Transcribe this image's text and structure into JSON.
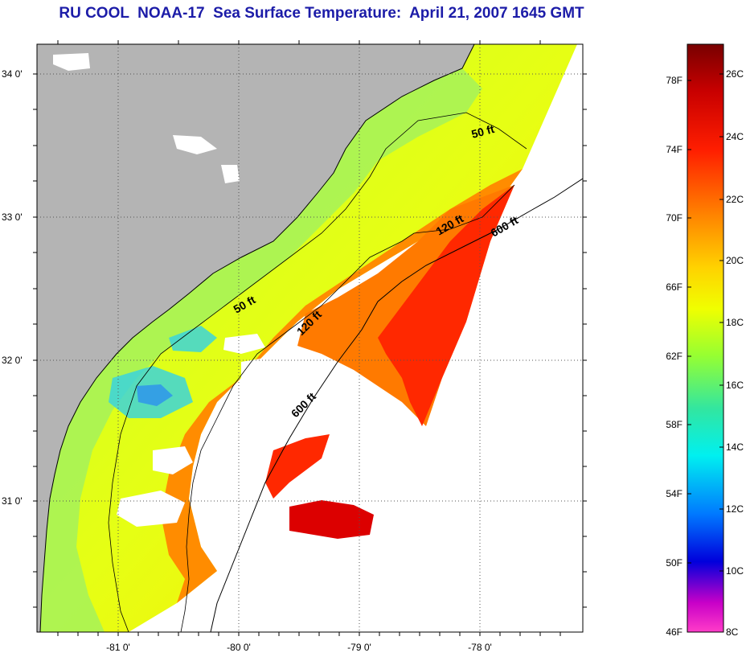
{
  "title": "RU COOL  NOAA-17  Sea Surface Temperature:  April 21, 2007 1645 GMT",
  "map": {
    "lat_labels": [
      "34 0'",
      "33 0'",
      "32 0'",
      "31 0'"
    ],
    "lon_labels": [
      "-81 0'",
      "-80 0'",
      "-79 0'",
      "-78 0'"
    ],
    "contour_labels": [
      "50 ft",
      "120 ft",
      "600 ft",
      "50 ft",
      "120 ft",
      "600 ft"
    ],
    "colors": {
      "land": "#b4b4b4",
      "no_data": "#ffffff"
    }
  },
  "colorbar": {
    "f_labels": [
      "78F",
      "74F",
      "70F",
      "66F",
      "62F",
      "58F",
      "54F",
      "50F",
      "46F"
    ],
    "c_labels": [
      "26C",
      "24C",
      "22C",
      "20C",
      "18C",
      "16C",
      "14C",
      "12C",
      "10C",
      "8C"
    ]
  }
}
